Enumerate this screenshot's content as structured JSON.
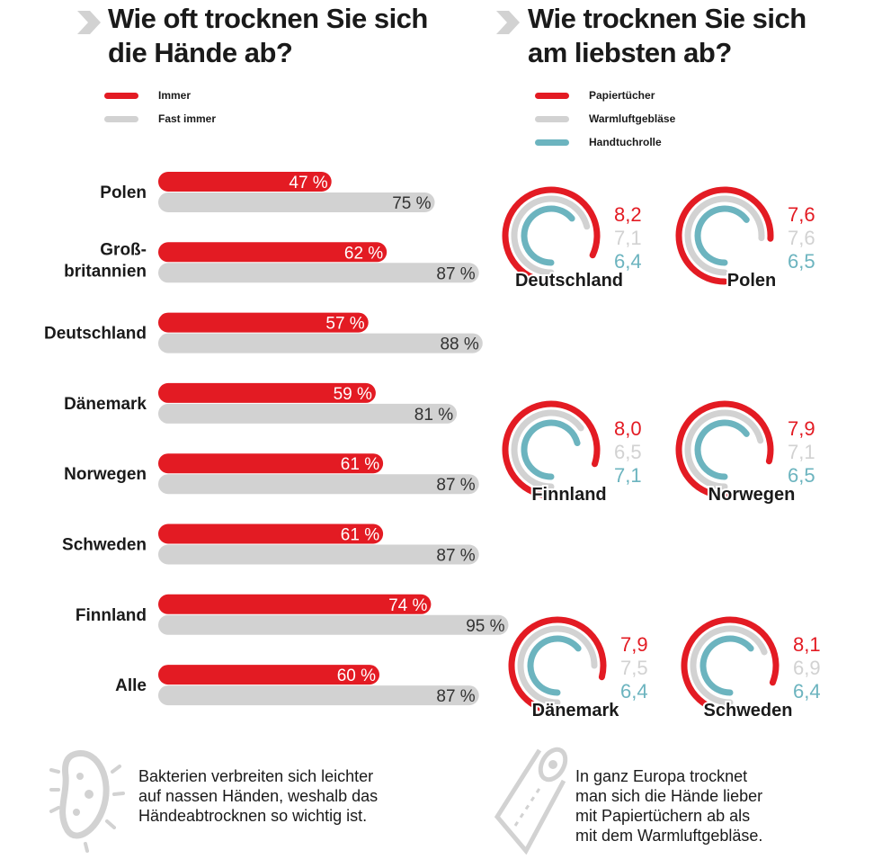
{
  "left": {
    "title_lines": [
      "Wie oft trocknen Sie sich",
      "die Hände ab?"
    ],
    "legend": [
      {
        "label": "Immer",
        "color": "#e31b23"
      },
      {
        "label": "Fast immer",
        "color": "#d2d2d2"
      }
    ]
  },
  "right": {
    "title_lines": [
      "Wie trocknen Sie sich",
      "am liebsten ab?"
    ],
    "legend": [
      {
        "label": "Papiertücher",
        "color": "#e31b23"
      },
      {
        "label": "Warmluftgebläse",
        "color": "#d2d2d2"
      },
      {
        "label": "Handtuchrolle",
        "color": "#6cb4bf"
      }
    ]
  },
  "chart_data": [
    {
      "type": "bar",
      "orientation": "horizontal",
      "unit": "%",
      "categories": [
        [
          "Polen"
        ],
        [
          "Groß-",
          "britannien"
        ],
        [
          "Deutschland"
        ],
        [
          "Dänemark"
        ],
        [
          "Norwegen"
        ],
        [
          "Schweden"
        ],
        [
          "Finnland"
        ],
        [
          "Alle"
        ]
      ],
      "series": [
        {
          "name": "Immer",
          "color": "#e31b23",
          "values": [
            47,
            62,
            57,
            59,
            61,
            61,
            74,
            60
          ]
        },
        {
          "name": "Fast immer",
          "color": "#d2d2d2",
          "values": [
            75,
            87,
            88,
            81,
            87,
            87,
            95,
            87
          ]
        }
      ],
      "xlim": [
        0,
        100
      ]
    },
    {
      "type": "radial-bar",
      "categories": [
        "Deutschland",
        "Polen",
        "Finnland",
        "Norwegen",
        "Dänemark",
        "Schweden"
      ],
      "series": [
        {
          "name": "Papiertücher",
          "color": "#e31b23",
          "values": [
            "8,2",
            "7,6",
            "8,0",
            "7,9",
            "7,9",
            "8,1"
          ]
        },
        {
          "name": "Warmluftgebläse",
          "color": "#d2d2d2",
          "values": [
            "7,1",
            "7,6",
            "6,5",
            "7,1",
            "7,5",
            "6,9"
          ]
        },
        {
          "name": "Handtuchrolle",
          "color": "#6cb4bf",
          "values": [
            "6,4",
            "6,5",
            "7,1",
            "6,5",
            "6,4",
            "6,4"
          ]
        }
      ],
      "scale_max": 10
    }
  ],
  "notes": {
    "bacteria": [
      "Bakterien verbreiten sich leichter",
      "auf nassen Händen, weshalb das",
      "Händeabtrocknen so wichtig ist."
    ],
    "paper": [
      "In ganz Europa trocknet",
      "man sich die Hände lieber",
      "mit Papiertüchern ab als",
      "mit dem Warmluftgebläse."
    ]
  }
}
